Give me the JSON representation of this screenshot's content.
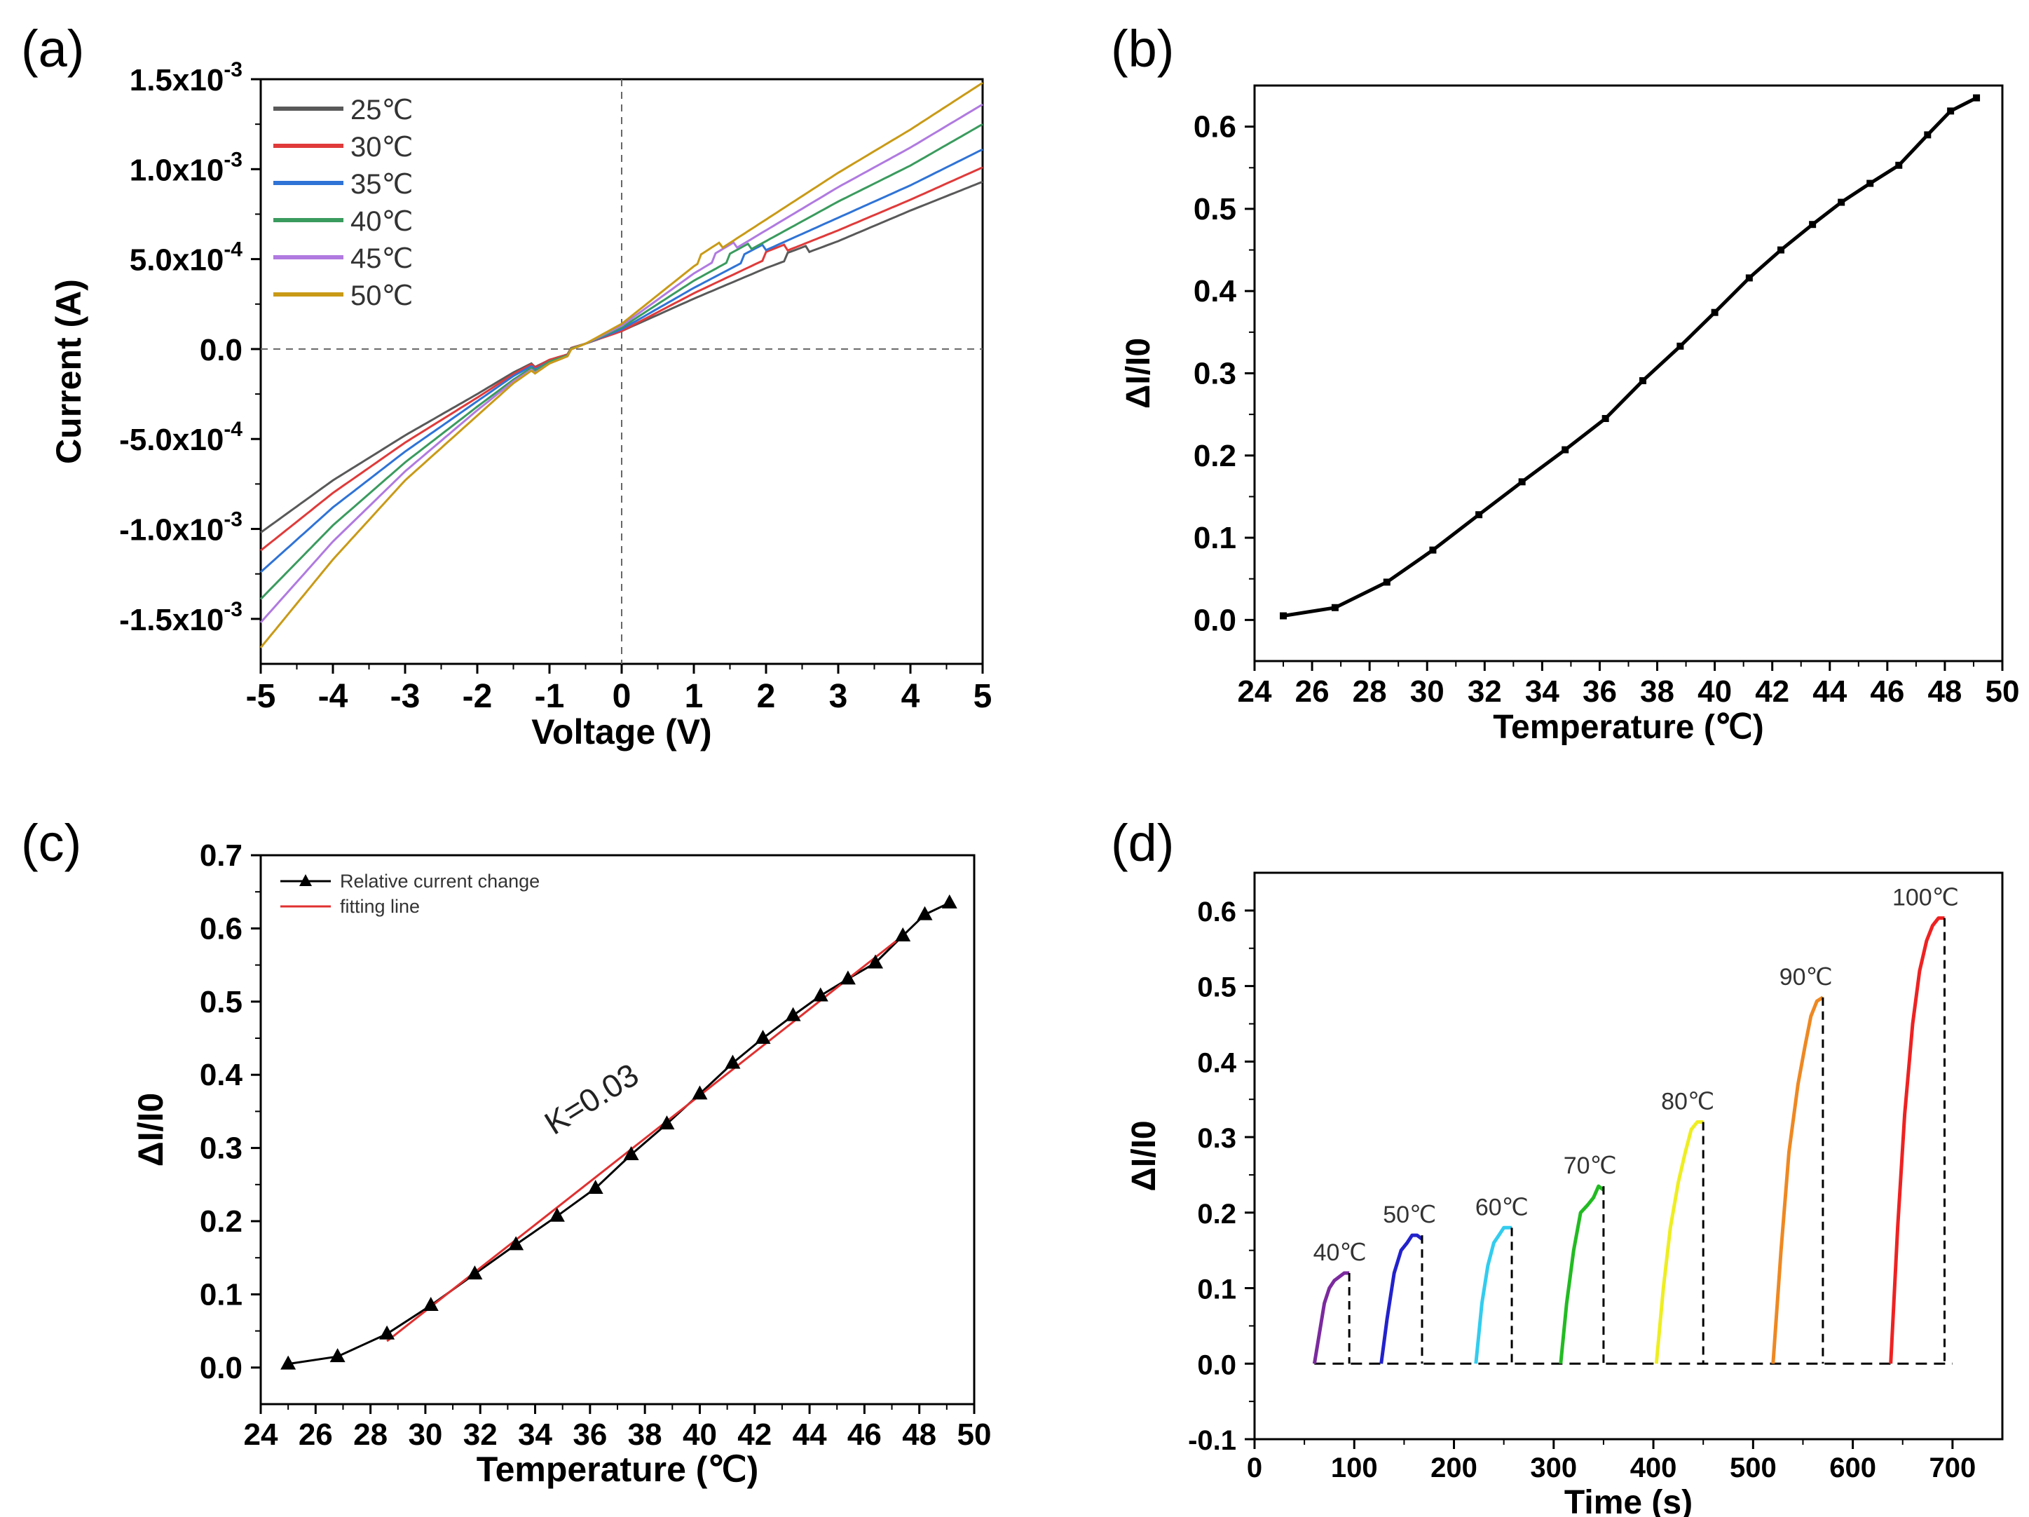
{
  "chart_data": [
    {
      "panel": "(a)",
      "type": "line",
      "xlabel": "Voltage (V)",
      "ylabel": "Current (A)",
      "xlim": [
        -5,
        5
      ],
      "ylim": [
        -0.00175,
        0.0015
      ],
      "xticks": [
        -5,
        -4,
        -3,
        -2,
        -1,
        0,
        1,
        2,
        3,
        4,
        5
      ],
      "xtick_labels": [
        "-5",
        "-4",
        "-3",
        "-2",
        "-1",
        "0",
        "1",
        "2",
        "3",
        "4",
        "5"
      ],
      "yticks": [
        -0.0015,
        -0.001,
        -0.0005,
        0,
        0.0005,
        0.001,
        0.0015
      ],
      "ytick_labels": [
        {
          "mant": "-1.5x10",
          "exp": "-3"
        },
        {
          "mant": "-1.0x10",
          "exp": "-3"
        },
        {
          "mant": "-5.0x10",
          "exp": "-4"
        },
        {
          "mant": "0.0",
          "exp": ""
        },
        {
          "mant": "5.0x10",
          "exp": "-4"
        },
        {
          "mant": "1.0x10",
          "exp": "-3"
        },
        {
          "mant": "1.5x10",
          "exp": "-3"
        }
      ],
      "legend_position": "top-left",
      "series": [
        {
          "name": "25℃",
          "color": "#595959",
          "kink_v": 2.3,
          "points": [
            [
              -5,
              -0.00102
            ],
            [
              -4,
              -0.00073
            ],
            [
              -3,
              -0.00048
            ],
            [
              -2,
              -0.00025
            ],
            [
              -1.5,
              -0.00013
            ],
            [
              -1,
              -3e-05
            ],
            [
              -0.5,
              3e-05
            ],
            [
              0,
              0.0001
            ],
            [
              1,
              0.00028
            ],
            [
              2,
              0.00045
            ],
            [
              3,
              0.0006
            ],
            [
              4,
              0.00077
            ],
            [
              5,
              0.00093
            ]
          ]
        },
        {
          "name": "30℃",
          "color": "#e03a3a",
          "kink_v": 2.0,
          "points": [
            [
              -5,
              -0.00112
            ],
            [
              -4,
              -0.0008
            ],
            [
              -3,
              -0.00052
            ],
            [
              -2,
              -0.00027
            ],
            [
              -1.5,
              -0.00014
            ],
            [
              -1,
              -3e-05
            ],
            [
              -0.5,
              3e-05
            ],
            [
              0,
              0.0001
            ],
            [
              1,
              0.00031
            ],
            [
              2,
              0.0005
            ],
            [
              3,
              0.00066
            ],
            [
              4,
              0.00083
            ],
            [
              5,
              0.00101
            ]
          ]
        },
        {
          "name": "35℃",
          "color": "#2f73d6",
          "kink_v": 1.7,
          "points": [
            [
              -5,
              -0.00124
            ],
            [
              -4,
              -0.00088
            ],
            [
              -3,
              -0.00057
            ],
            [
              -2,
              -0.00029
            ],
            [
              -1.5,
              -0.00015
            ],
            [
              -1,
              -4e-05
            ],
            [
              -0.5,
              3e-05
            ],
            [
              0,
              0.00011
            ],
            [
              1,
              0.00034
            ],
            [
              2,
              0.00055
            ],
            [
              3,
              0.00073
            ],
            [
              4,
              0.00091
            ],
            [
              5,
              0.00111
            ]
          ]
        },
        {
          "name": "40℃",
          "color": "#3a9b5e",
          "kink_v": 1.5,
          "points": [
            [
              -5,
              -0.00139
            ],
            [
              -4,
              -0.00098
            ],
            [
              -3,
              -0.00063
            ],
            [
              -2,
              -0.00032
            ],
            [
              -1.5,
              -0.00017
            ],
            [
              -1,
              -4e-05
            ],
            [
              -0.5,
              3e-05
            ],
            [
              0,
              0.00012
            ],
            [
              1,
              0.00038
            ],
            [
              2,
              0.0006
            ],
            [
              3,
              0.00082
            ],
            [
              4,
              0.00102
            ],
            [
              5,
              0.00125
            ]
          ]
        },
        {
          "name": "45℃",
          "color": "#b07ae0",
          "kink_v": 1.3,
          "points": [
            [
              -5,
              -0.00152
            ],
            [
              -4,
              -0.00107
            ],
            [
              -3,
              -0.00068
            ],
            [
              -2,
              -0.00034
            ],
            [
              -1.5,
              -0.00018
            ],
            [
              -1,
              -5e-05
            ],
            [
              -0.5,
              3e-05
            ],
            [
              0,
              0.00013
            ],
            [
              1,
              0.00042
            ],
            [
              2,
              0.00066
            ],
            [
              3,
              0.0009
            ],
            [
              4,
              0.00112
            ],
            [
              5,
              0.00136
            ]
          ]
        },
        {
          "name": "50℃",
          "color": "#c99a16",
          "kink_v": 1.1,
          "points": [
            [
              -5,
              -0.00166
            ],
            [
              -4,
              -0.00117
            ],
            [
              -3,
              -0.00073
            ],
            [
              -2,
              -0.00037
            ],
            [
              -1.5,
              -0.00019
            ],
            [
              -1,
              -5e-05
            ],
            [
              -0.5,
              3e-05
            ],
            [
              0,
              0.00014
            ],
            [
              1,
              0.00046
            ],
            [
              2,
              0.00072
            ],
            [
              3,
              0.00098
            ],
            [
              4,
              0.00122
            ],
            [
              5,
              0.00148
            ]
          ]
        }
      ]
    },
    {
      "panel": "(b)",
      "type": "line",
      "xlabel": "Temperature (℃)",
      "ylabel": "ΔI/I0",
      "xlim": [
        24,
        50
      ],
      "ylim": [
        -0.05,
        0.65
      ],
      "xticks": [
        24,
        26,
        28,
        30,
        32,
        34,
        36,
        38,
        40,
        42,
        44,
        46,
        48,
        50
      ],
      "xtick_labels": [
        "24",
        "26",
        "28",
        "30",
        "32",
        "34",
        "36",
        "38",
        "40",
        "42",
        "44",
        "46",
        "48",
        "50"
      ],
      "yticks": [
        0,
        0.1,
        0.2,
        0.3,
        0.4,
        0.5,
        0.6
      ],
      "ytick_labels": [
        "0.0",
        "0.1",
        "0.2",
        "0.3",
        "0.4",
        "0.5",
        "0.6"
      ],
      "series": [
        {
          "name": "ΔI/I0",
          "color": "#000000",
          "marker": "square",
          "x": [
            25,
            26.8,
            28.6,
            30.2,
            31.8,
            33.3,
            34.8,
            36.2,
            37.5,
            38.8,
            40,
            41.2,
            42.3,
            43.4,
            44.4,
            45.4,
            46.4,
            47.4,
            48.2,
            49.1
          ],
          "y": [
            0.005,
            0.015,
            0.046,
            0.085,
            0.128,
            0.168,
            0.207,
            0.245,
            0.291,
            0.333,
            0.374,
            0.416,
            0.45,
            0.481,
            0.508,
            0.531,
            0.553,
            0.59,
            0.619,
            0.635
          ]
        }
      ]
    },
    {
      "panel": "(c)",
      "type": "line",
      "xlabel": "Temperature (℃)",
      "ylabel": "ΔI/I0",
      "xlim": [
        24,
        50
      ],
      "ylim": [
        -0.05,
        0.7
      ],
      "xticks": [
        24,
        26,
        28,
        30,
        32,
        34,
        36,
        38,
        40,
        42,
        44,
        46,
        48,
        50
      ],
      "xtick_labels": [
        "24",
        "26",
        "28",
        "30",
        "32",
        "34",
        "36",
        "38",
        "40",
        "42",
        "44",
        "46",
        "48",
        "50"
      ],
      "yticks": [
        0,
        0.1,
        0.2,
        0.3,
        0.4,
        0.5,
        0.6,
        0.7
      ],
      "ytick_labels": [
        "0.0",
        "0.1",
        "0.2",
        "0.3",
        "0.4",
        "0.5",
        "0.6",
        "0.7"
      ],
      "legend_position": "top-left",
      "annotation": "K=0.03",
      "series": [
        {
          "name": "Relative current change",
          "color": "#000000",
          "marker": "triangle",
          "x": [
            25,
            26.8,
            28.6,
            30.2,
            31.8,
            33.3,
            34.8,
            36.2,
            37.5,
            38.8,
            40,
            41.2,
            42.3,
            43.4,
            44.4,
            45.4,
            46.4,
            47.4,
            48.2,
            49.1
          ],
          "y": [
            0.005,
            0.015,
            0.046,
            0.085,
            0.128,
            0.168,
            0.207,
            0.245,
            0.291,
            0.333,
            0.374,
            0.416,
            0.45,
            0.481,
            0.508,
            0.531,
            0.553,
            0.59,
            0.619,
            0.635
          ]
        },
        {
          "name": "fitting line",
          "color": "#e03030",
          "x": [
            28.6,
            47.4
          ],
          "y": [
            0.036,
            0.59
          ]
        }
      ]
    },
    {
      "panel": "(d)",
      "type": "line",
      "xlabel": "Time (s)",
      "ylabel": "ΔI/I0",
      "xlim": [
        0,
        750
      ],
      "ylim": [
        -0.1,
        0.65
      ],
      "xticks": [
        0,
        100,
        200,
        300,
        400,
        500,
        600,
        700
      ],
      "xtick_labels": [
        "0",
        "100",
        "200",
        "300",
        "400",
        "500",
        "600",
        "700"
      ],
      "yticks": [
        -0.1,
        0,
        0.1,
        0.2,
        0.3,
        0.4,
        0.5,
        0.6
      ],
      "ytick_labels": [
        "-0.1",
        "0.0",
        "0.1",
        "0.2",
        "0.3",
        "0.4",
        "0.5",
        "0.6"
      ],
      "baseline": {
        "x": [
          60,
          700
        ],
        "y": 0
      },
      "series": [
        {
          "name": "40℃",
          "color": "#7b2a9e",
          "t": [
            60,
            65,
            70,
            75,
            80,
            85,
            90,
            95
          ],
          "y": [
            0,
            0.04,
            0.08,
            0.1,
            0.11,
            0.115,
            0.12,
            0.12
          ]
        },
        {
          "name": "50℃",
          "color": "#2222cc",
          "t": [
            127,
            133,
            140,
            147,
            153,
            158,
            163,
            168
          ],
          "y": [
            0,
            0.06,
            0.12,
            0.15,
            0.16,
            0.17,
            0.17,
            0.165
          ]
        },
        {
          "name": "60℃",
          "color": "#33ccee",
          "t": [
            222,
            228,
            234,
            240,
            245,
            250,
            255,
            258
          ],
          "y": [
            0,
            0.08,
            0.13,
            0.16,
            0.17,
            0.18,
            0.18,
            0.18
          ]
        },
        {
          "name": "70℃",
          "color": "#22bb22",
          "t": [
            307,
            313,
            320,
            327,
            334,
            340,
            345,
            350
          ],
          "y": [
            0,
            0.08,
            0.15,
            0.2,
            0.21,
            0.22,
            0.235,
            0.23
          ]
        },
        {
          "name": "80℃",
          "color": "#eeee22",
          "t": [
            403,
            410,
            417,
            425,
            432,
            438,
            444,
            450
          ],
          "y": [
            0,
            0.1,
            0.18,
            0.24,
            0.28,
            0.31,
            0.32,
            0.32
          ]
        },
        {
          "name": "90℃",
          "color": "#ee8822",
          "t": [
            520,
            528,
            536,
            545,
            552,
            558,
            564,
            570
          ],
          "y": [
            0,
            0.15,
            0.28,
            0.37,
            0.42,
            0.46,
            0.48,
            0.485
          ]
        },
        {
          "name": "100℃",
          "color": "#ee2222",
          "t": [
            638,
            645,
            652,
            660,
            667,
            674,
            680,
            686,
            692
          ],
          "y": [
            0,
            0.18,
            0.33,
            0.45,
            0.52,
            0.56,
            0.58,
            0.59,
            0.59
          ]
        }
      ]
    }
  ]
}
